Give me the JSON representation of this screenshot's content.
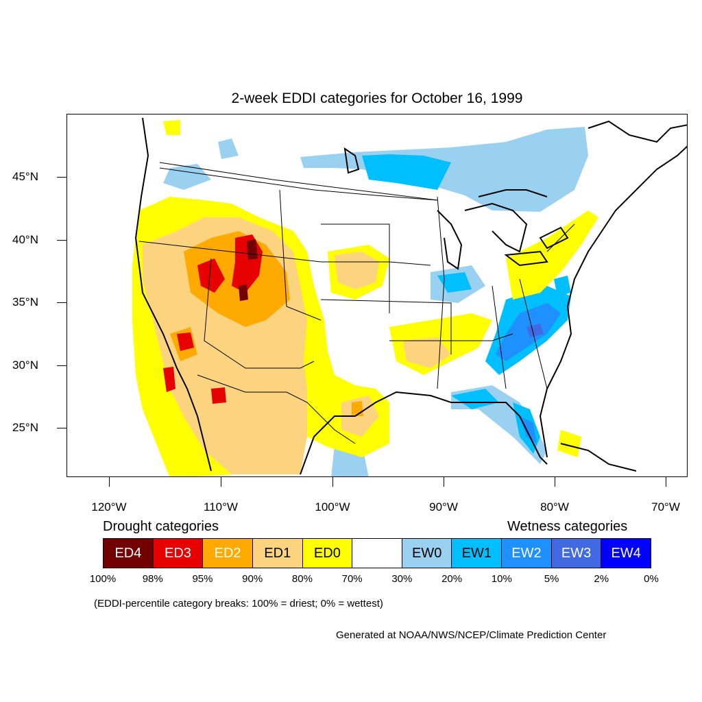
{
  "title": "2-week EDDI categories for October 16, 1999",
  "map": {
    "lat_labels": [
      "45°N",
      "40°N",
      "35°N",
      "30°N",
      "25°N"
    ],
    "lon_labels": [
      "120°W",
      "110°W",
      "100°W",
      "90°W",
      "80°W",
      "70°W"
    ]
  },
  "legend": {
    "drought_heading": "Drought categories",
    "wetness_heading": "Wetness categories",
    "categories": [
      {
        "label": "ED4",
        "color": "#730000"
      },
      {
        "label": "ED3",
        "color": "#e60000"
      },
      {
        "label": "ED2",
        "color": "#ffaa00"
      },
      {
        "label": "ED1",
        "color": "#fcd37f"
      },
      {
        "label": "ED0",
        "color": "#ffff00"
      },
      {
        "label": "",
        "color": "#ffffff"
      },
      {
        "label": "EW0",
        "color": "#9bd1f0"
      },
      {
        "label": "EW1",
        "color": "#00bfff"
      },
      {
        "label": "EW2",
        "color": "#1e90ff"
      },
      {
        "label": "EW3",
        "color": "#4169e1"
      },
      {
        "label": "EW4",
        "color": "#0000ff"
      }
    ],
    "breaks": [
      "100%",
      "98%",
      "95%",
      "90%",
      "80%",
      "70%",
      "30%",
      "20%",
      "10%",
      "5%",
      "2%",
      "0%"
    ],
    "note": "(EDDI-percentile category breaks: 100% = driest; 0% = wettest)"
  },
  "credit": "Generated at NOAA/NWS/NCEP/Climate Prediction Center"
}
